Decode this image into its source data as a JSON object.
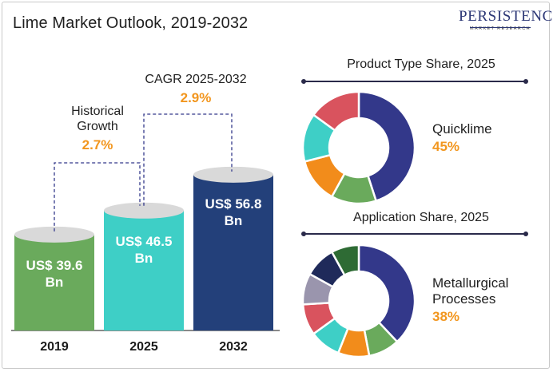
{
  "title": "Lime Market Outlook, 2019-2032",
  "logo": {
    "main": "PERSISTENCE",
    "sub": "MARKET RESEARCH"
  },
  "annotations": {
    "historical": {
      "label_line1": "Historical",
      "label_line2": "Growth",
      "value": "2.7%"
    },
    "cagr": {
      "label": "CAGR 2025-2032",
      "value": "2.9%"
    }
  },
  "product_panel": {
    "title": "Product Type Share, 2025",
    "highlight_label": "Quicklime",
    "highlight_value": "45%"
  },
  "application_panel": {
    "title": "Application Share, 2025",
    "highlight_label_line1": "Metallurgical",
    "highlight_label_line2": "Processes",
    "highlight_value": "38%"
  },
  "colors": {
    "bar_2019": "#6aaa5c",
    "bar_2025": "#3ecfc6",
    "bar_2032": "#23407a",
    "accent_orange": "#f2961e",
    "navy": "#33388a"
  },
  "chart_data": [
    {
      "type": "bar",
      "categories": [
        "2019",
        "2025",
        "2032"
      ],
      "values": [
        39.6,
        46.5,
        56.8
      ],
      "value_labels": [
        "US$ 39.6 Bn",
        "US$ 46.5 Bn",
        "US$ 56.8 Bn"
      ],
      "colors": [
        "#6aaa5c",
        "#3ecfc6",
        "#23407a"
      ],
      "ylim": [
        0,
        60
      ]
    },
    {
      "type": "pie",
      "title": "Product Type Share, 2025",
      "highlight": "Quicklime",
      "slices": [
        {
          "label": "Quicklime",
          "value": 45,
          "color": "#33388a"
        },
        {
          "value": 13,
          "color": "#6aaa5c"
        },
        {
          "value": 13,
          "color": "#f28c1b"
        },
        {
          "value": 14,
          "color": "#3ecfc6"
        },
        {
          "value": 15,
          "color": "#d9535e"
        }
      ]
    },
    {
      "type": "pie",
      "title": "Application Share, 2025",
      "highlight": "Metallurgical Processes",
      "slices": [
        {
          "label": "Metallurgical Processes",
          "value": 38,
          "color": "#33388a"
        },
        {
          "value": 9,
          "color": "#6aaa5c"
        },
        {
          "value": 9,
          "color": "#f28c1b"
        },
        {
          "value": 9,
          "color": "#3ecfc6"
        },
        {
          "value": 9,
          "color": "#d9535e"
        },
        {
          "value": 9,
          "color": "#9a95ad"
        },
        {
          "value": 9,
          "color": "#1f2a5a"
        },
        {
          "value": 8,
          "color": "#2e6b34"
        }
      ]
    }
  ]
}
